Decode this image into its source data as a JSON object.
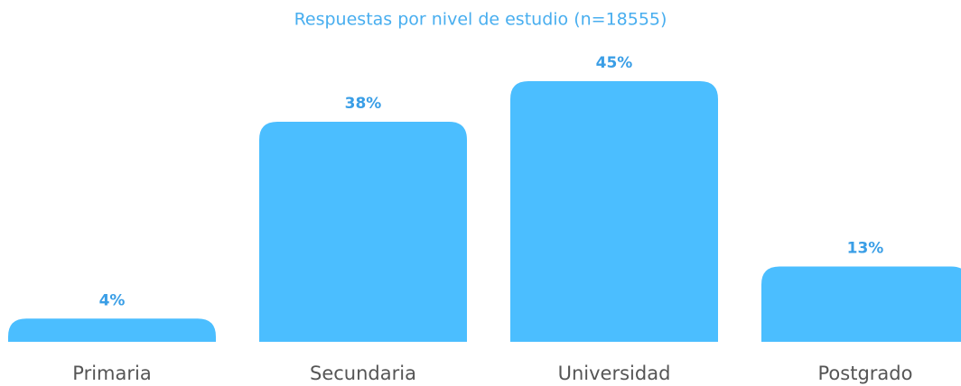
{
  "chart_data": {
    "type": "bar",
    "title": "Respuestas por nivel de estudio (n=18555)",
    "categories": [
      "Primaria",
      "Secundaria",
      "Universidad",
      "Postgrado"
    ],
    "values": [
      4,
      38,
      45,
      13
    ],
    "value_labels": [
      "4%",
      "38%",
      "45%",
      "13%"
    ],
    "color": "#4bbeff"
  }
}
